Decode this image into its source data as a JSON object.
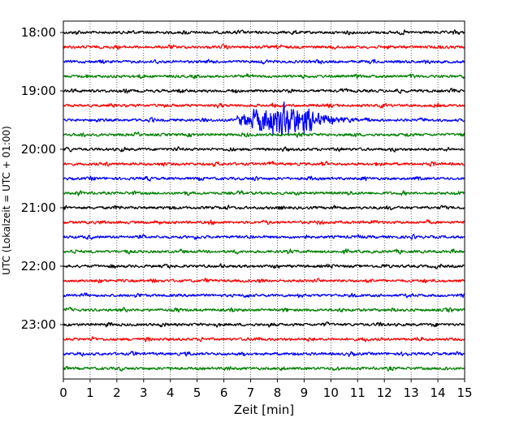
{
  "chart_data": {
    "type": "line",
    "title": "",
    "xlabel": "Zeit  [min]",
    "ylabel": "UTC (Lokalzeit = UTC + 01:00)",
    "xlim": [
      0,
      15
    ],
    "x_ticks": [
      "0",
      "1",
      "2",
      "3",
      "4",
      "5",
      "6",
      "7",
      "8",
      "9",
      "10",
      "11",
      "12",
      "13",
      "14",
      "15"
    ],
    "y_ticks": [
      "18:00",
      "19:00",
      "20:00",
      "21:00",
      "22:00",
      "23:00"
    ],
    "grid": "vertical dotted",
    "trace_minutes": 15,
    "colors": [
      "#000000",
      "#ff0000",
      "#0000ff",
      "#008000"
    ],
    "traces": [
      {
        "start": "18:00",
        "color": "#000000"
      },
      {
        "start": "18:15",
        "color": "#ff0000"
      },
      {
        "start": "18:30",
        "color": "#0000ff"
      },
      {
        "start": "18:45",
        "color": "#008000"
      },
      {
        "start": "19:00",
        "color": "#000000"
      },
      {
        "start": "19:15",
        "color": "#ff0000"
      },
      {
        "start": "19:30",
        "color": "#0000ff",
        "event": {
          "start_min": 6.5,
          "peak_min": 8.0,
          "end_min": 11.0
        }
      },
      {
        "start": "19:45",
        "color": "#008000"
      },
      {
        "start": "20:00",
        "color": "#000000"
      },
      {
        "start": "20:15",
        "color": "#ff0000"
      },
      {
        "start": "20:30",
        "color": "#0000ff"
      },
      {
        "start": "20:45",
        "color": "#008000"
      },
      {
        "start": "21:00",
        "color": "#000000"
      },
      {
        "start": "21:15",
        "color": "#ff0000"
      },
      {
        "start": "21:30",
        "color": "#0000ff"
      },
      {
        "start": "21:45",
        "color": "#008000"
      },
      {
        "start": "22:00",
        "color": "#000000"
      },
      {
        "start": "22:15",
        "color": "#ff0000"
      },
      {
        "start": "22:30",
        "color": "#0000ff"
      },
      {
        "start": "22:45",
        "color": "#008000"
      },
      {
        "start": "23:00",
        "color": "#000000"
      },
      {
        "start": "23:15",
        "color": "#ff0000"
      },
      {
        "start": "23:30",
        "color": "#0000ff"
      },
      {
        "start": "23:45",
        "color": "#008000"
      }
    ]
  }
}
